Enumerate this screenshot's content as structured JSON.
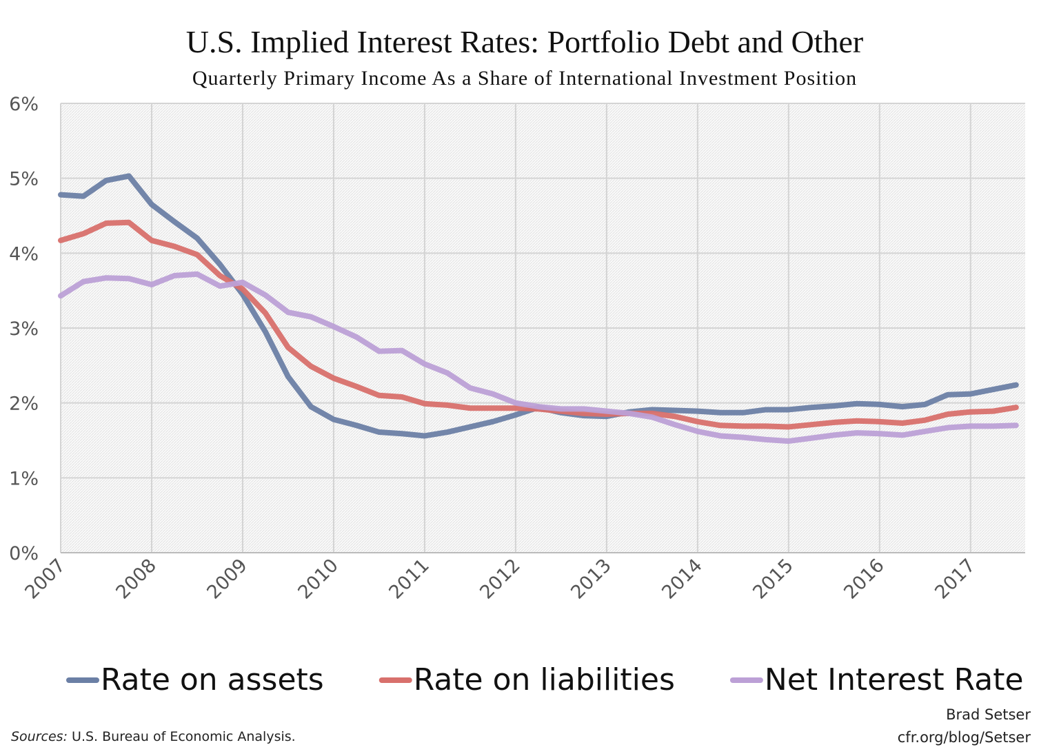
{
  "chart_data": {
    "type": "line",
    "title": "U.S. Implied Interest Rates: Portfolio Debt and Other",
    "subtitle": "Quarterly Primary Income As a Share of International Investment Position",
    "x": [
      2007,
      2007.25,
      2007.5,
      2007.75,
      2008,
      2008.25,
      2008.5,
      2008.75,
      2009,
      2009.25,
      2009.5,
      2009.75,
      2010,
      2010.25,
      2010.5,
      2010.75,
      2011,
      2011.25,
      2011.5,
      2011.75,
      2012,
      2012.25,
      2012.5,
      2012.75,
      2013,
      2013.25,
      2013.5,
      2013.75,
      2014,
      2014.25,
      2014.5,
      2014.75,
      2015,
      2015.25,
      2015.5,
      2015.75,
      2016,
      2016.25,
      2016.5,
      2016.75,
      2017,
      2017.25,
      2017.5
    ],
    "series": [
      {
        "name": "Rate on assets",
        "color": "#6b7fa5",
        "values": [
          4.78,
          4.76,
          4.97,
          5.03,
          4.65,
          4.42,
          4.2,
          3.85,
          3.45,
          2.95,
          2.35,
          1.95,
          1.78,
          1.7,
          1.61,
          1.59,
          1.56,
          1.61,
          1.68,
          1.75,
          1.84,
          1.94,
          1.87,
          1.83,
          1.82,
          1.88,
          1.91,
          1.9,
          1.89,
          1.87,
          1.87,
          1.91,
          1.91,
          1.94,
          1.96,
          1.99,
          1.98,
          1.95,
          1.98,
          2.11,
          2.12,
          2.18,
          2.24
        ]
      },
      {
        "name": "Rate on liabilities",
        "color": "#d8706c",
        "values": [
          4.17,
          4.26,
          4.4,
          4.41,
          4.17,
          4.09,
          3.98,
          3.7,
          3.52,
          3.2,
          2.74,
          2.49,
          2.33,
          2.22,
          2.1,
          2.08,
          1.99,
          1.97,
          1.93,
          1.93,
          1.93,
          1.92,
          1.89,
          1.86,
          1.85,
          1.86,
          1.86,
          1.82,
          1.75,
          1.7,
          1.69,
          1.69,
          1.68,
          1.71,
          1.74,
          1.76,
          1.75,
          1.73,
          1.77,
          1.85,
          1.88,
          1.89,
          1.94
        ]
      },
      {
        "name": "Net Interest Rate",
        "color": "#bca0d6",
        "values": [
          3.43,
          3.62,
          3.67,
          3.66,
          3.58,
          3.7,
          3.72,
          3.56,
          3.61,
          3.44,
          3.21,
          3.15,
          3.02,
          2.88,
          2.69,
          2.7,
          2.52,
          2.4,
          2.2,
          2.12,
          2.0,
          1.95,
          1.92,
          1.92,
          1.89,
          1.86,
          1.81,
          1.71,
          1.62,
          1.56,
          1.54,
          1.51,
          1.49,
          1.53,
          1.57,
          1.6,
          1.59,
          1.57,
          1.62,
          1.67,
          1.69,
          1.69,
          1.7
        ]
      }
    ],
    "xlim": [
      2007,
      2017.6
    ],
    "xticks": [
      2007,
      2008,
      2009,
      2010,
      2011,
      2012,
      2013,
      2014,
      2015,
      2016,
      2017
    ],
    "ylim": [
      0,
      6
    ],
    "yticks": [
      {
        "value": 0,
        "label": "0%"
      },
      {
        "value": 1,
        "label": "1%"
      },
      {
        "value": 2,
        "label": "2%"
      },
      {
        "value": 3,
        "label": "3%"
      },
      {
        "value": 4,
        "label": "4%"
      },
      {
        "value": 5,
        "label": "5%"
      },
      {
        "value": 6,
        "label": "6%"
      }
    ],
    "grid": true,
    "legend": "bottom",
    "sources_label": "Sources:",
    "sources": "U.S. Bureau of Economic Analysis.",
    "author": "Brad Setser",
    "url": "cfr.org/blog/Setser"
  }
}
